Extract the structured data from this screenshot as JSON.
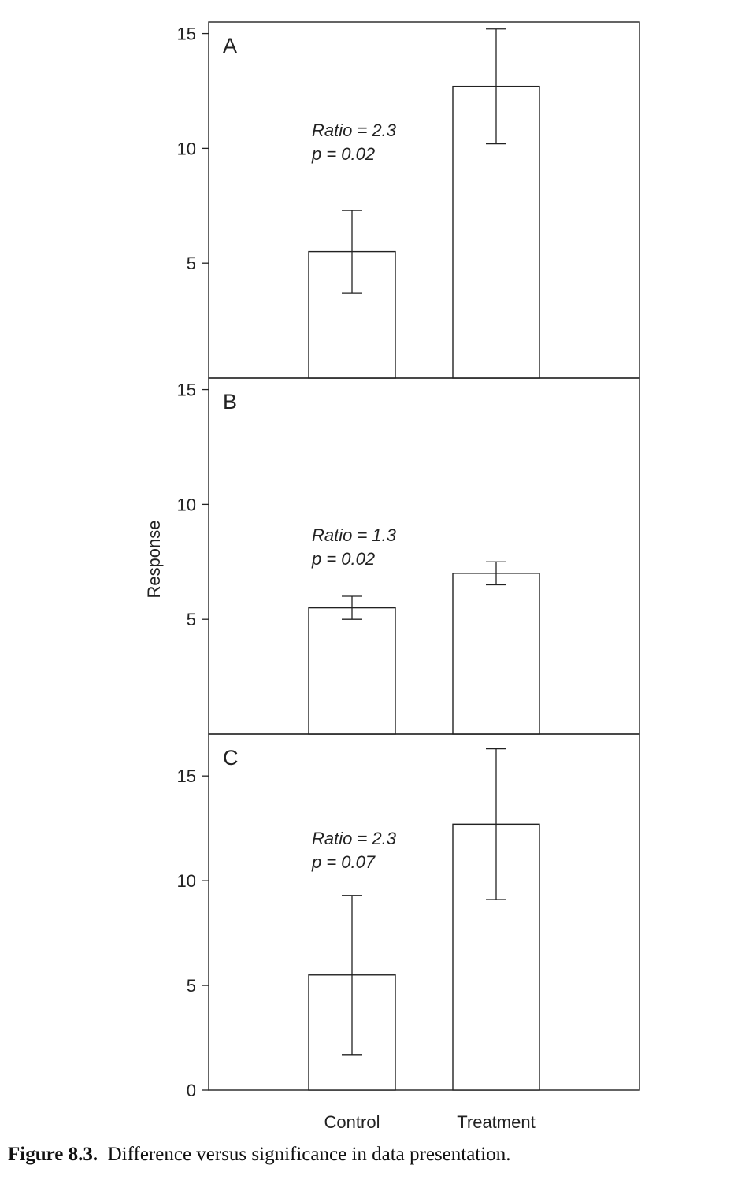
{
  "chart_data": [
    {
      "type": "bar",
      "panel_label": "A",
      "categories": [
        "Control",
        "Treatment"
      ],
      "values": [
        5.5,
        12.7
      ],
      "error_low": [
        3.7,
        10.2
      ],
      "error_high": [
        7.3,
        15.2
      ],
      "ylim": [
        0,
        15.5
      ],
      "yticks": [
        5,
        10,
        15
      ],
      "annotation": [
        "Ratio = 2.3",
        "p = 0.02"
      ]
    },
    {
      "type": "bar",
      "panel_label": "B",
      "categories": [
        "Control",
        "Treatment"
      ],
      "values": [
        5.5,
        7.0
      ],
      "error_low": [
        5.0,
        6.5
      ],
      "error_high": [
        6.0,
        7.5
      ],
      "ylim": [
        0,
        15.5
      ],
      "yticks": [
        5,
        10,
        15
      ],
      "annotation": [
        "Ratio = 1.3",
        "p = 0.02"
      ]
    },
    {
      "type": "bar",
      "panel_label": "C",
      "categories": [
        "Control",
        "Treatment"
      ],
      "values": [
        5.5,
        12.7
      ],
      "error_low": [
        1.7,
        9.1
      ],
      "error_high": [
        9.3,
        16.3
      ],
      "ylim": [
        0,
        17
      ],
      "yticks": [
        0,
        5,
        10,
        15
      ],
      "annotation": [
        "Ratio = 2.3",
        "p = 0.07"
      ]
    }
  ],
  "ylabel": "Response",
  "categories": [
    "Control",
    "Treatment"
  ],
  "caption": {
    "label": "Figure 8.3.",
    "text": "Difference versus significance in data presentation."
  }
}
